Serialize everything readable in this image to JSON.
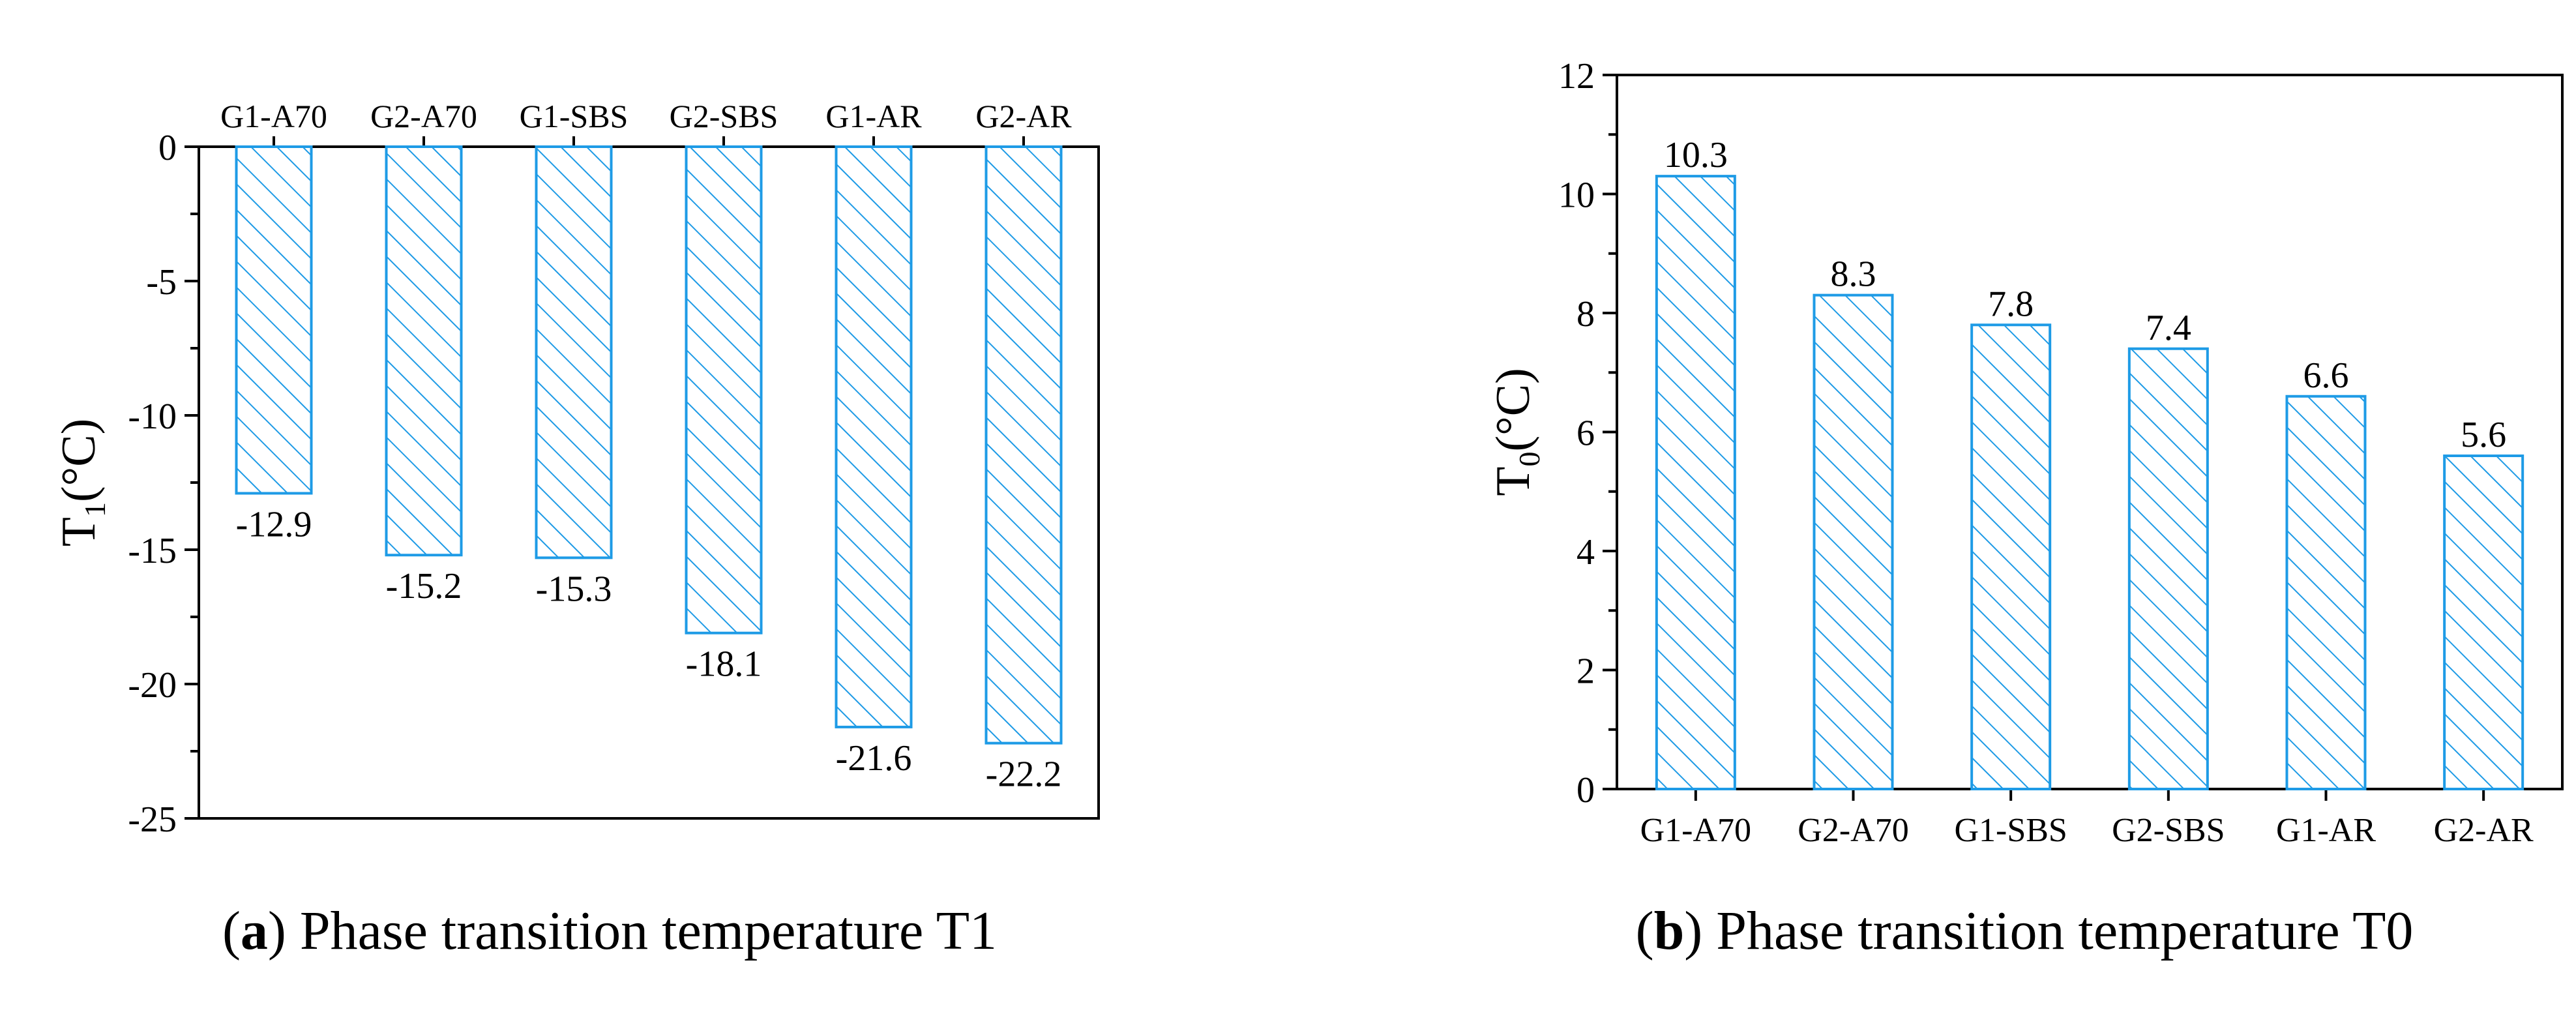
{
  "chart_data": [
    {
      "type": "bar",
      "title": "",
      "xlabel": "",
      "ylabel": "T1(°C)",
      "ylim": [
        -25,
        0
      ],
      "yticks": [
        0,
        -5,
        -10,
        -15,
        -20,
        -25
      ],
      "xaxis_position": "top",
      "categories": [
        "G1-A70",
        "G2-A70",
        "G1-SBS",
        "G2-SBS",
        "G1-AR",
        "G2-AR"
      ],
      "values": [
        -12.9,
        -15.2,
        -15.3,
        -18.1,
        -21.6,
        -22.2
      ],
      "data_labels": [
        "-12.9",
        "-15.2",
        "-15.3",
        "-18.1",
        "-21.6",
        "-22.2"
      ],
      "bar_color": "#1E9BE6",
      "caption_letter": "a",
      "caption_text": "Phase transition temperature T1"
    },
    {
      "type": "bar",
      "title": "",
      "xlabel": "",
      "ylabel": "T0(°C)",
      "ylim": [
        0,
        12
      ],
      "yticks": [
        0,
        2,
        4,
        6,
        8,
        10,
        12
      ],
      "xaxis_position": "bottom",
      "categories": [
        "G1-A70",
        "G2-A70",
        "G1-SBS",
        "G2-SBS",
        "G1-AR",
        "G2-AR"
      ],
      "values": [
        10.3,
        8.3,
        7.8,
        7.4,
        6.6,
        5.6
      ],
      "data_labels": [
        "10.3",
        "8.3",
        "7.8",
        "7.4",
        "6.6",
        "5.6"
      ],
      "bar_color": "#1E9BE6",
      "caption_letter": "b",
      "caption_text": "Phase transition temperature T0"
    }
  ]
}
